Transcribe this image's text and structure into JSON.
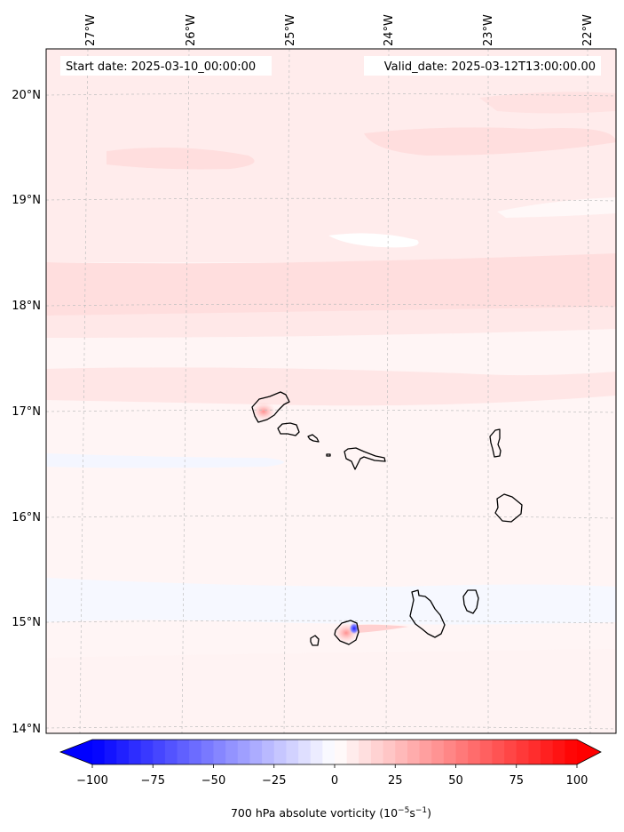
{
  "map": {
    "start_date": "Start date: 2025-03-10_00:00:00",
    "valid_date": "Valid_date: 2025-03-12T13:00:00.00",
    "lon_labels": [
      "27°W",
      "26°W",
      "25°W",
      "24°W",
      "23°W",
      "22°W"
    ],
    "lat_labels": [
      "20°N",
      "19°N",
      "18°N",
      "17°N",
      "16°N",
      "15°N",
      "14°N"
    ],
    "islands": [
      "santo-antao",
      "sao-vicente",
      "santa-luzia",
      "branco",
      "sao-nicolau",
      "sal",
      "boa-vista",
      "brava",
      "fogo",
      "santiago",
      "maio"
    ]
  },
  "colorbar": {
    "ticks": [
      "−100",
      "−75",
      "−50",
      "−25",
      "0",
      "25",
      "50",
      "75",
      "100"
    ],
    "tick_values": [
      -100,
      -75,
      -50,
      -25,
      0,
      25,
      50,
      75,
      100
    ],
    "label_prefix": "700 hPa absolute vorticity (10",
    "label_exp1": "−5",
    "label_mid": "s",
    "label_exp2": "−1",
    "label_suffix": ")",
    "color_min": "#0000ff",
    "color_mid": "#ffffff",
    "color_max": "#ff0000"
  },
  "colors": {
    "field_background": "#fff5f5",
    "pink_light": "#ffecec",
    "pink_band": "#ffdede",
    "blue_tint": "#f3f6ff",
    "coastline": "#000000"
  }
}
